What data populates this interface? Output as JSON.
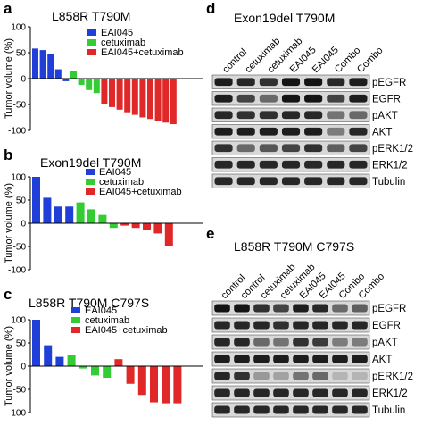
{
  "panels": {
    "a": {
      "letter": "a",
      "title": "L858R T790M"
    },
    "b": {
      "letter": "b",
      "title": "Exon19del T790M"
    },
    "c": {
      "letter": "c",
      "title": "L858R T790M C797S"
    },
    "d": {
      "letter": "d",
      "title": "Exon19del T790M"
    },
    "e": {
      "letter": "e",
      "title": "L858R T790M C797S"
    }
  },
  "ylabel": "Tumor volume (%)",
  "legend": [
    "EAI045",
    "cetuximab",
    "EAI045+cetuximab"
  ],
  "colors": {
    "EAI045": "#1f3fd8",
    "cetuximab": "#33cc33",
    "combo": "#e02828"
  },
  "chart_data": [
    {
      "type": "bar",
      "title": "L858R T790M",
      "ylabel": "Tumor volume (%)",
      "yticks": [
        "100",
        "50",
        "0",
        "-50",
        "-100"
      ],
      "ylim": [
        -100,
        100
      ],
      "series": [
        {
          "name": "EAI045",
          "values": [
            58,
            55,
            48,
            18,
            -5
          ]
        },
        {
          "name": "cetuximab",
          "values": [
            14,
            -12,
            -22,
            -28
          ]
        },
        {
          "name": "EAI045+cetuximab",
          "values": [
            -50,
            -55,
            -60,
            -65,
            -70,
            -75,
            -78,
            -82,
            -85,
            -88
          ]
        }
      ]
    },
    {
      "type": "bar",
      "title": "Exon19del T790M",
      "ylabel": "Tumor volume (%)",
      "yticks": [
        "100",
        "50",
        "0",
        "-50",
        "-100"
      ],
      "ylim": [
        -100,
        100
      ],
      "series": [
        {
          "name": "EAI045",
          "values": [
            100,
            55,
            36,
            36
          ]
        },
        {
          "name": "cetuximab",
          "values": [
            45,
            30,
            18,
            -10
          ]
        },
        {
          "name": "EAI045+cetuximab",
          "values": [
            -5,
            -10,
            -15,
            -22,
            -50
          ]
        }
      ]
    },
    {
      "type": "bar",
      "title": "L858R T790M C797S",
      "ylabel": "Tumor volume (%)",
      "yticks": [
        "100",
        "50",
        "0",
        "-50",
        "-100"
      ],
      "ylim": [
        -100,
        100
      ],
      "series": [
        {
          "name": "EAI045",
          "values": [
            100,
            45,
            20
          ]
        },
        {
          "name": "cetuximab",
          "values": [
            25,
            -5,
            -20,
            -25
          ]
        },
        {
          "name": "EAI045+cetuximab",
          "values": [
            15,
            -38,
            -62,
            -78,
            -80,
            -80
          ]
        }
      ]
    }
  ],
  "blot_d": {
    "lanes": [
      "control",
      "cetuximab",
      "cetuximab",
      "EAI045",
      "EAI045",
      "Combo",
      "Combo"
    ],
    "rows": [
      {
        "label": "pEGFR",
        "intensity": [
          0.9,
          0.85,
          0.8,
          0.95,
          0.95,
          0.85,
          0.9
        ]
      },
      {
        "label": "EGFR",
        "intensity": [
          0.9,
          0.7,
          0.5,
          0.95,
          0.95,
          0.7,
          0.9
        ]
      },
      {
        "label": "pAKT",
        "intensity": [
          0.85,
          0.8,
          0.8,
          0.85,
          0.85,
          0.45,
          0.5
        ]
      },
      {
        "label": "AKT",
        "intensity": [
          0.9,
          0.9,
          0.9,
          0.9,
          0.9,
          0.4,
          0.85
        ]
      },
      {
        "label": "pERK1/2",
        "intensity": [
          0.8,
          0.5,
          0.6,
          0.7,
          0.8,
          0.55,
          0.7
        ]
      },
      {
        "label": "ERK1/2",
        "intensity": [
          0.85,
          0.85,
          0.85,
          0.85,
          0.85,
          0.85,
          0.85
        ]
      },
      {
        "label": "Tubulin",
        "intensity": [
          0.85,
          0.85,
          0.85,
          0.85,
          0.85,
          0.85,
          0.85
        ]
      }
    ]
  },
  "blot_e": {
    "lanes": [
      "control",
      "control",
      "cetuximab",
      "cetuximab",
      "EAI045",
      "EAI045",
      "Combo",
      "Combo"
    ],
    "rows": [
      {
        "label": "pEGFR",
        "intensity": [
          0.95,
          0.95,
          0.8,
          0.7,
          0.9,
          0.85,
          0.5,
          0.55
        ]
      },
      {
        "label": "EGFR",
        "intensity": [
          0.85,
          0.85,
          0.85,
          0.8,
          0.85,
          0.85,
          0.85,
          0.85
        ]
      },
      {
        "label": "pAKT",
        "intensity": [
          0.85,
          0.85,
          0.5,
          0.45,
          0.8,
          0.75,
          0.4,
          0.4
        ]
      },
      {
        "label": "AKT",
        "intensity": [
          0.9,
          0.9,
          0.9,
          0.9,
          0.9,
          0.9,
          0.9,
          0.9
        ]
      },
      {
        "label": "pERK1/2",
        "intensity": [
          0.85,
          0.8,
          0.25,
          0.2,
          0.45,
          0.5,
          0.1,
          0.1
        ]
      },
      {
        "label": "ERK1/2",
        "intensity": [
          0.85,
          0.85,
          0.85,
          0.85,
          0.85,
          0.85,
          0.85,
          0.85
        ]
      },
      {
        "label": "Tubulin",
        "intensity": [
          0.85,
          0.85,
          0.85,
          0.85,
          0.85,
          0.85,
          0.85,
          0.85
        ]
      }
    ]
  }
}
